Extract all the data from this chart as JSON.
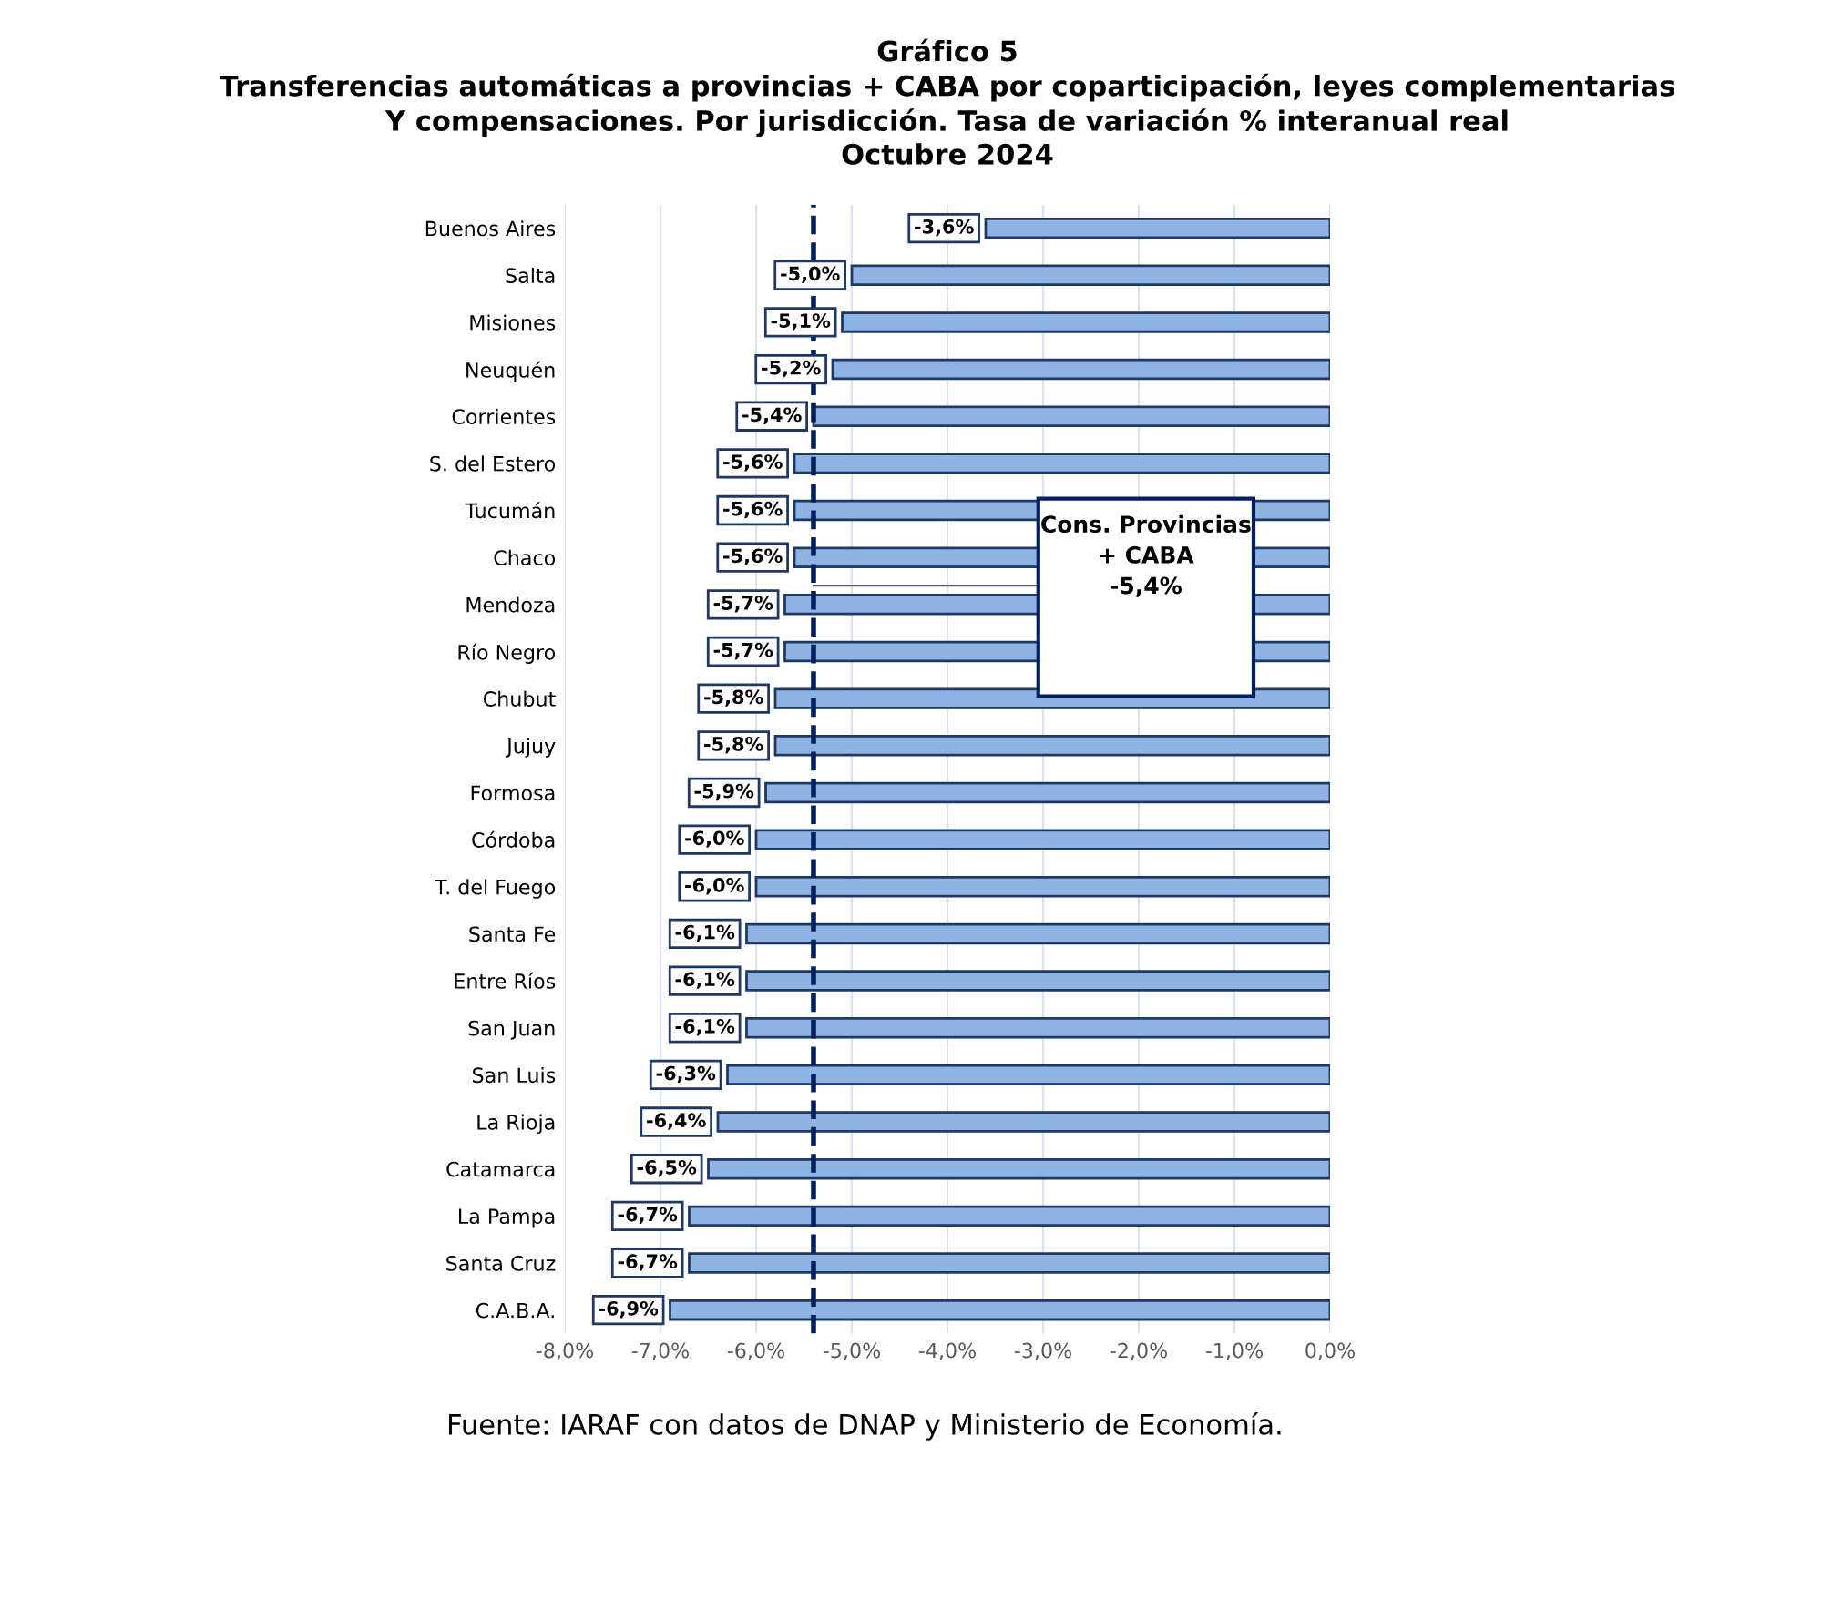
{
  "chart_data": {
    "type": "bar",
    "orientation": "horizontal",
    "title": "Gráfico 5\nTransferencias automáticas a provincias + CABA por coparticipación, leyes complementarias\nY compensaciones. Por jurisdicción. Tasa de variación % interanual real\nOctubre 2024",
    "categories": [
      "Buenos Aires",
      "Salta",
      "Misiones",
      "Neuquén",
      "Corrientes",
      "S. del Estero",
      "Tucumán",
      "Chaco",
      "Mendoza",
      "Río Negro",
      "Chubut",
      "Jujuy",
      "Formosa",
      "Córdoba",
      "T. del Fuego",
      "Santa Fe",
      "Entre Ríos",
      "San Juan",
      "San Luis",
      "La Rioja",
      "Catamarca",
      "La Pampa",
      "Santa Cruz",
      "C.A.B.A."
    ],
    "values": [
      -3.6,
      -5.0,
      -5.1,
      -5.2,
      -5.4,
      -5.6,
      -5.6,
      -5.6,
      -5.7,
      -5.7,
      -5.8,
      -5.8,
      -5.9,
      -6.0,
      -6.0,
      -6.1,
      -6.1,
      -6.1,
      -6.3,
      -6.4,
      -6.5,
      -6.7,
      -6.7,
      -6.9
    ],
    "value_labels": [
      "-3,6%",
      "-5,0%",
      "-5,1%",
      "-5,2%",
      "-5,4%",
      "-5,6%",
      "-5,6%",
      "-5,6%",
      "-5,7%",
      "-5,7%",
      "-5,8%",
      "-5,8%",
      "-5,9%",
      "-6,0%",
      "-6,0%",
      "-6,1%",
      "-6,1%",
      "-6,1%",
      "-6,3%",
      "-6,4%",
      "-6,5%",
      "-6,7%",
      "-6,7%",
      "-6,9%"
    ],
    "color": "#8db4e2",
    "xlim": [
      -8,
      0
    ],
    "xticks": [
      {
        "value": -8,
        "label": "-8,0%"
      },
      {
        "value": -7,
        "label": "-7,0%"
      },
      {
        "value": -6,
        "label": "-6,0%"
      },
      {
        "value": -5,
        "label": "-5,0%"
      },
      {
        "value": -4,
        "label": "-4,0%"
      },
      {
        "value": -3,
        "label": "-3,0%"
      },
      {
        "value": -2,
        "label": "-2,0%"
      },
      {
        "value": -1,
        "label": "-1,0%"
      },
      {
        "value": 0,
        "label": "0,0%"
      }
    ],
    "grid": "x",
    "ref_lines": [
      {
        "axis": "x",
        "value": -5.4,
        "color": "#002060",
        "line_style": "dashed"
      }
    ],
    "annotations": [
      "Cons. Provincias\n+ CABA\n-5,4%",
      "Fuente: IARAF con datos de DNAP y Ministerio de Economía."
    ]
  }
}
